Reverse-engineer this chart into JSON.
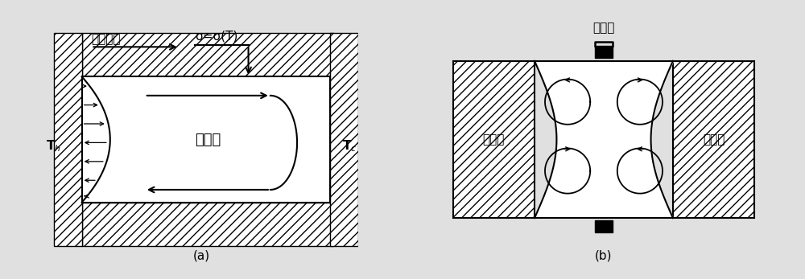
{
  "bg_color": "#e0e0e0",
  "line_color": "#000000",
  "white": "#ffffff",
  "label_a": "(a)",
  "label_b": "(b)",
  "text_thermocapillary": "热毛细力",
  "text_sigma": "σ=σ(T)",
  "text_fluid_side": "流体侧",
  "text_Th": "T$_h$",
  "text_Tc": "T$_c$",
  "text_crystal": "晶体棒",
  "text_moving_end": "移动端",
  "text_heating_end": "加热端"
}
